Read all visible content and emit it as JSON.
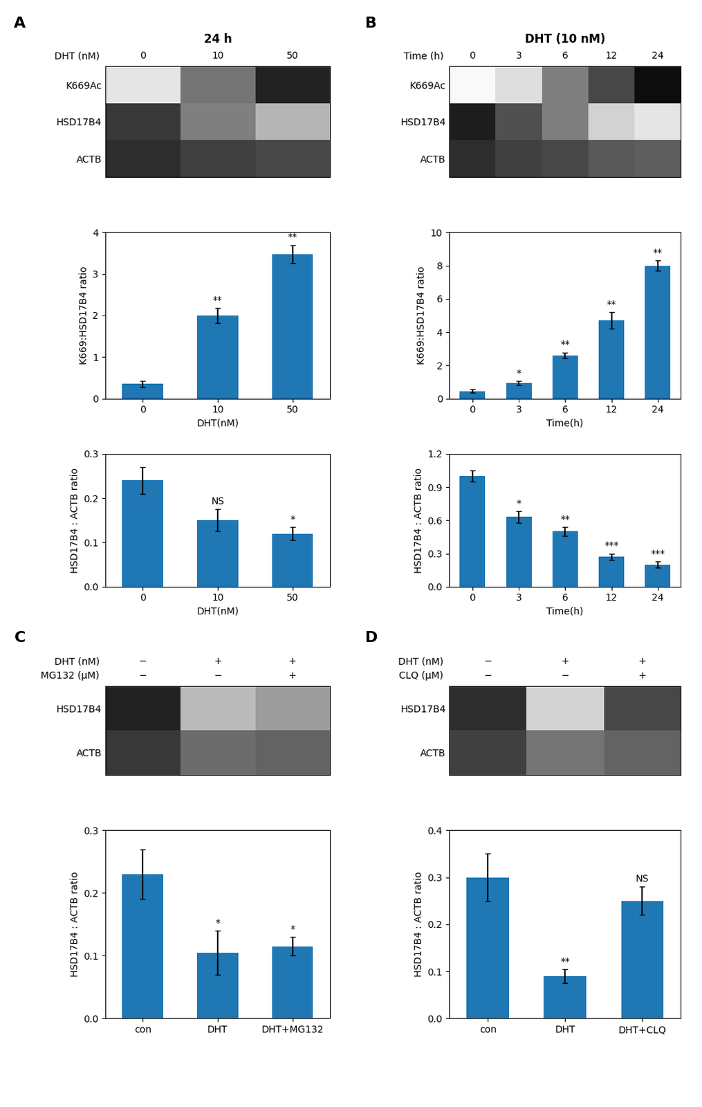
{
  "chart_data": [
    {
      "type": "heatmap",
      "panel": "A",
      "title": "24 h",
      "header_rows": [
        {
          "name": "DHT (nM)",
          "values": [
            "0",
            "10",
            "50"
          ]
        }
      ],
      "rows": [
        "K669Ac",
        "HSD17B4",
        "ACTB"
      ],
      "cells": [
        [
          0.18,
          0.62,
          0.88
        ],
        [
          0.82,
          0.58,
          0.4
        ],
        [
          0.85,
          0.8,
          0.78
        ]
      ],
      "tick_labels": "y"
    },
    {
      "type": "bar",
      "categories": [
        "0",
        "10",
        "50"
      ],
      "values": [
        0.35,
        2.0,
        3.48
      ],
      "errors": [
        0.07,
        0.18,
        0.22
      ],
      "ylabel": "K669:HSD17B4 ratio",
      "xlabel": "DHT(nM)",
      "ylim": [
        0,
        4
      ],
      "yticks": [
        0,
        1,
        2,
        3,
        4
      ],
      "significance": [
        null,
        "**",
        "**"
      ]
    },
    {
      "type": "bar",
      "categories": [
        "0",
        "10",
        "50"
      ],
      "values": [
        0.24,
        0.15,
        0.12
      ],
      "errors": [
        0.03,
        0.025,
        0.015
      ],
      "ylabel": "HSD17B4 : ACTB ratio",
      "xlabel": "DHT(nM)",
      "ylim": [
        0,
        0.3
      ],
      "yticks": [
        0.0,
        0.1,
        0.2,
        0.3
      ],
      "significance": [
        null,
        "NS",
        "*"
      ]
    },
    {
      "type": "heatmap",
      "panel": "B",
      "title": "DHT (10 nM)",
      "header_rows": [
        {
          "name": "Time (h)",
          "values": [
            "0",
            "3",
            "6",
            "12",
            "24"
          ]
        }
      ],
      "rows": [
        "K669Ac",
        "HSD17B4",
        "ACTB"
      ],
      "cells": [
        [
          0.05,
          0.22,
          0.58,
          0.78,
          0.95
        ],
        [
          0.9,
          0.75,
          0.58,
          0.28,
          0.18
        ],
        [
          0.85,
          0.8,
          0.78,
          0.72,
          0.7
        ]
      ],
      "tick_labels": "y"
    },
    {
      "type": "bar",
      "categories": [
        "0",
        "3",
        "6",
        "12",
        "24"
      ],
      "values": [
        0.45,
        0.95,
        2.6,
        4.7,
        8.0
      ],
      "errors": [
        0.1,
        0.12,
        0.18,
        0.5,
        0.3
      ],
      "ylabel": "K669:HSD17B4 ratio",
      "xlabel": "Time(h)",
      "ylim": [
        0,
        10
      ],
      "yticks": [
        0,
        2,
        4,
        6,
        8,
        10
      ],
      "significance": [
        null,
        "*",
        "**",
        "**",
        "**"
      ]
    },
    {
      "type": "bar",
      "categories": [
        "0",
        "3",
        "6",
        "12",
        "24"
      ],
      "values": [
        1.0,
        0.63,
        0.5,
        0.27,
        0.2
      ],
      "errors": [
        0.05,
        0.05,
        0.04,
        0.03,
        0.03
      ],
      "ylabel": "HSD17B4 : ACTB ratio",
      "xlabel": "Time(h)",
      "ylim": [
        0,
        1.2
      ],
      "yticks": [
        0.0,
        0.3,
        0.6,
        0.9,
        1.2
      ],
      "significance": [
        null,
        "*",
        "**",
        "***",
        "***"
      ]
    },
    {
      "type": "heatmap",
      "panel": "C",
      "header_rows": [
        {
          "name": "DHT (nM)",
          "values": [
            "−",
            "+",
            "+"
          ]
        },
        {
          "name": "MG132 (μM)",
          "values": [
            "−",
            "−",
            "+"
          ]
        }
      ],
      "rows": [
        "HSD17B4",
        "ACTB"
      ],
      "cells": [
        [
          0.88,
          0.38,
          0.48
        ],
        [
          0.82,
          0.65,
          0.68
        ]
      ],
      "tick_labels": "y"
    },
    {
      "type": "bar",
      "categories": [
        "con",
        "DHT",
        "DHT+MG132"
      ],
      "values": [
        0.23,
        0.105,
        0.115
      ],
      "errors": [
        0.04,
        0.035,
        0.015
      ],
      "ylabel": "HSD17B4 : ACTB ratio",
      "ylim": [
        0,
        0.3
      ],
      "yticks": [
        0.0,
        0.1,
        0.2,
        0.3
      ],
      "significance": [
        null,
        "*",
        "*"
      ]
    },
    {
      "type": "heatmap",
      "panel": "D",
      "header_rows": [
        {
          "name": "DHT (nM)",
          "values": [
            "−",
            "+",
            "+"
          ]
        },
        {
          "name": "CLQ (μM)",
          "values": [
            "−",
            "−",
            "+"
          ]
        }
      ],
      "rows": [
        "HSD17B4",
        "ACTB"
      ],
      "cells": [
        [
          0.85,
          0.28,
          0.78
        ],
        [
          0.8,
          0.62,
          0.68
        ]
      ],
      "tick_labels": "y"
    },
    {
      "type": "bar",
      "categories": [
        "con",
        "DHT",
        "DHT+CLQ"
      ],
      "values": [
        0.3,
        0.09,
        0.25
      ],
      "errors": [
        0.05,
        0.015,
        0.03
      ],
      "ylabel": "HSD17B4 : ACTB ratio",
      "ylim": [
        0,
        0.4
      ],
      "yticks": [
        0.0,
        0.1,
        0.2,
        0.3,
        0.4
      ],
      "significance": [
        null,
        "**",
        "NS"
      ]
    }
  ]
}
